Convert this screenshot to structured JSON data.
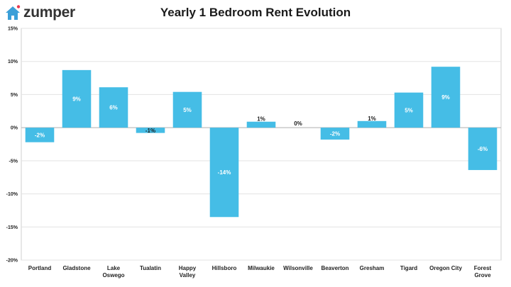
{
  "brand": {
    "name": "zumper",
    "icon": "house-icon",
    "icon_color": "#3a9fd8",
    "dot_color": "#e8384f"
  },
  "chart_data": {
    "type": "bar",
    "title": "Yearly 1 Bedroom Rent Evolution",
    "xlabel": "",
    "ylabel": "",
    "ylim": [
      -20,
      15
    ],
    "yticks": [
      15,
      10,
      5,
      0,
      -5,
      -10,
      -15,
      -20
    ],
    "ytick_labels": [
      "15%",
      "10%",
      "5%",
      "0%",
      "-5%",
      "-10%",
      "-15%",
      "-20%"
    ],
    "grid": true,
    "bar_color": "#45bde6",
    "categories": [
      [
        "Portland"
      ],
      [
        "Gladstone"
      ],
      [
        "Lake",
        "Oswego"
      ],
      [
        "Tualatin"
      ],
      [
        "Happy",
        "Valley"
      ],
      [
        "Hillsboro"
      ],
      [
        "Milwaukie"
      ],
      [
        "Wilsonville"
      ],
      [
        "Beaverton"
      ],
      [
        "Gresham"
      ],
      [
        "Tigard"
      ],
      [
        "Oregon City"
      ],
      [
        "Forest",
        "Grove"
      ]
    ],
    "values": [
      -2.2,
      8.7,
      6.1,
      -0.8,
      5.4,
      -13.5,
      0.9,
      0,
      -1.8,
      1.0,
      5.3,
      9.2,
      -6.4
    ],
    "data_labels": [
      "-2%",
      "9%",
      "6%",
      "-1%",
      "5%",
      "-14%",
      "1%",
      "0%",
      "-2%",
      "1%",
      "5%",
      "9%",
      "-6%"
    ]
  }
}
